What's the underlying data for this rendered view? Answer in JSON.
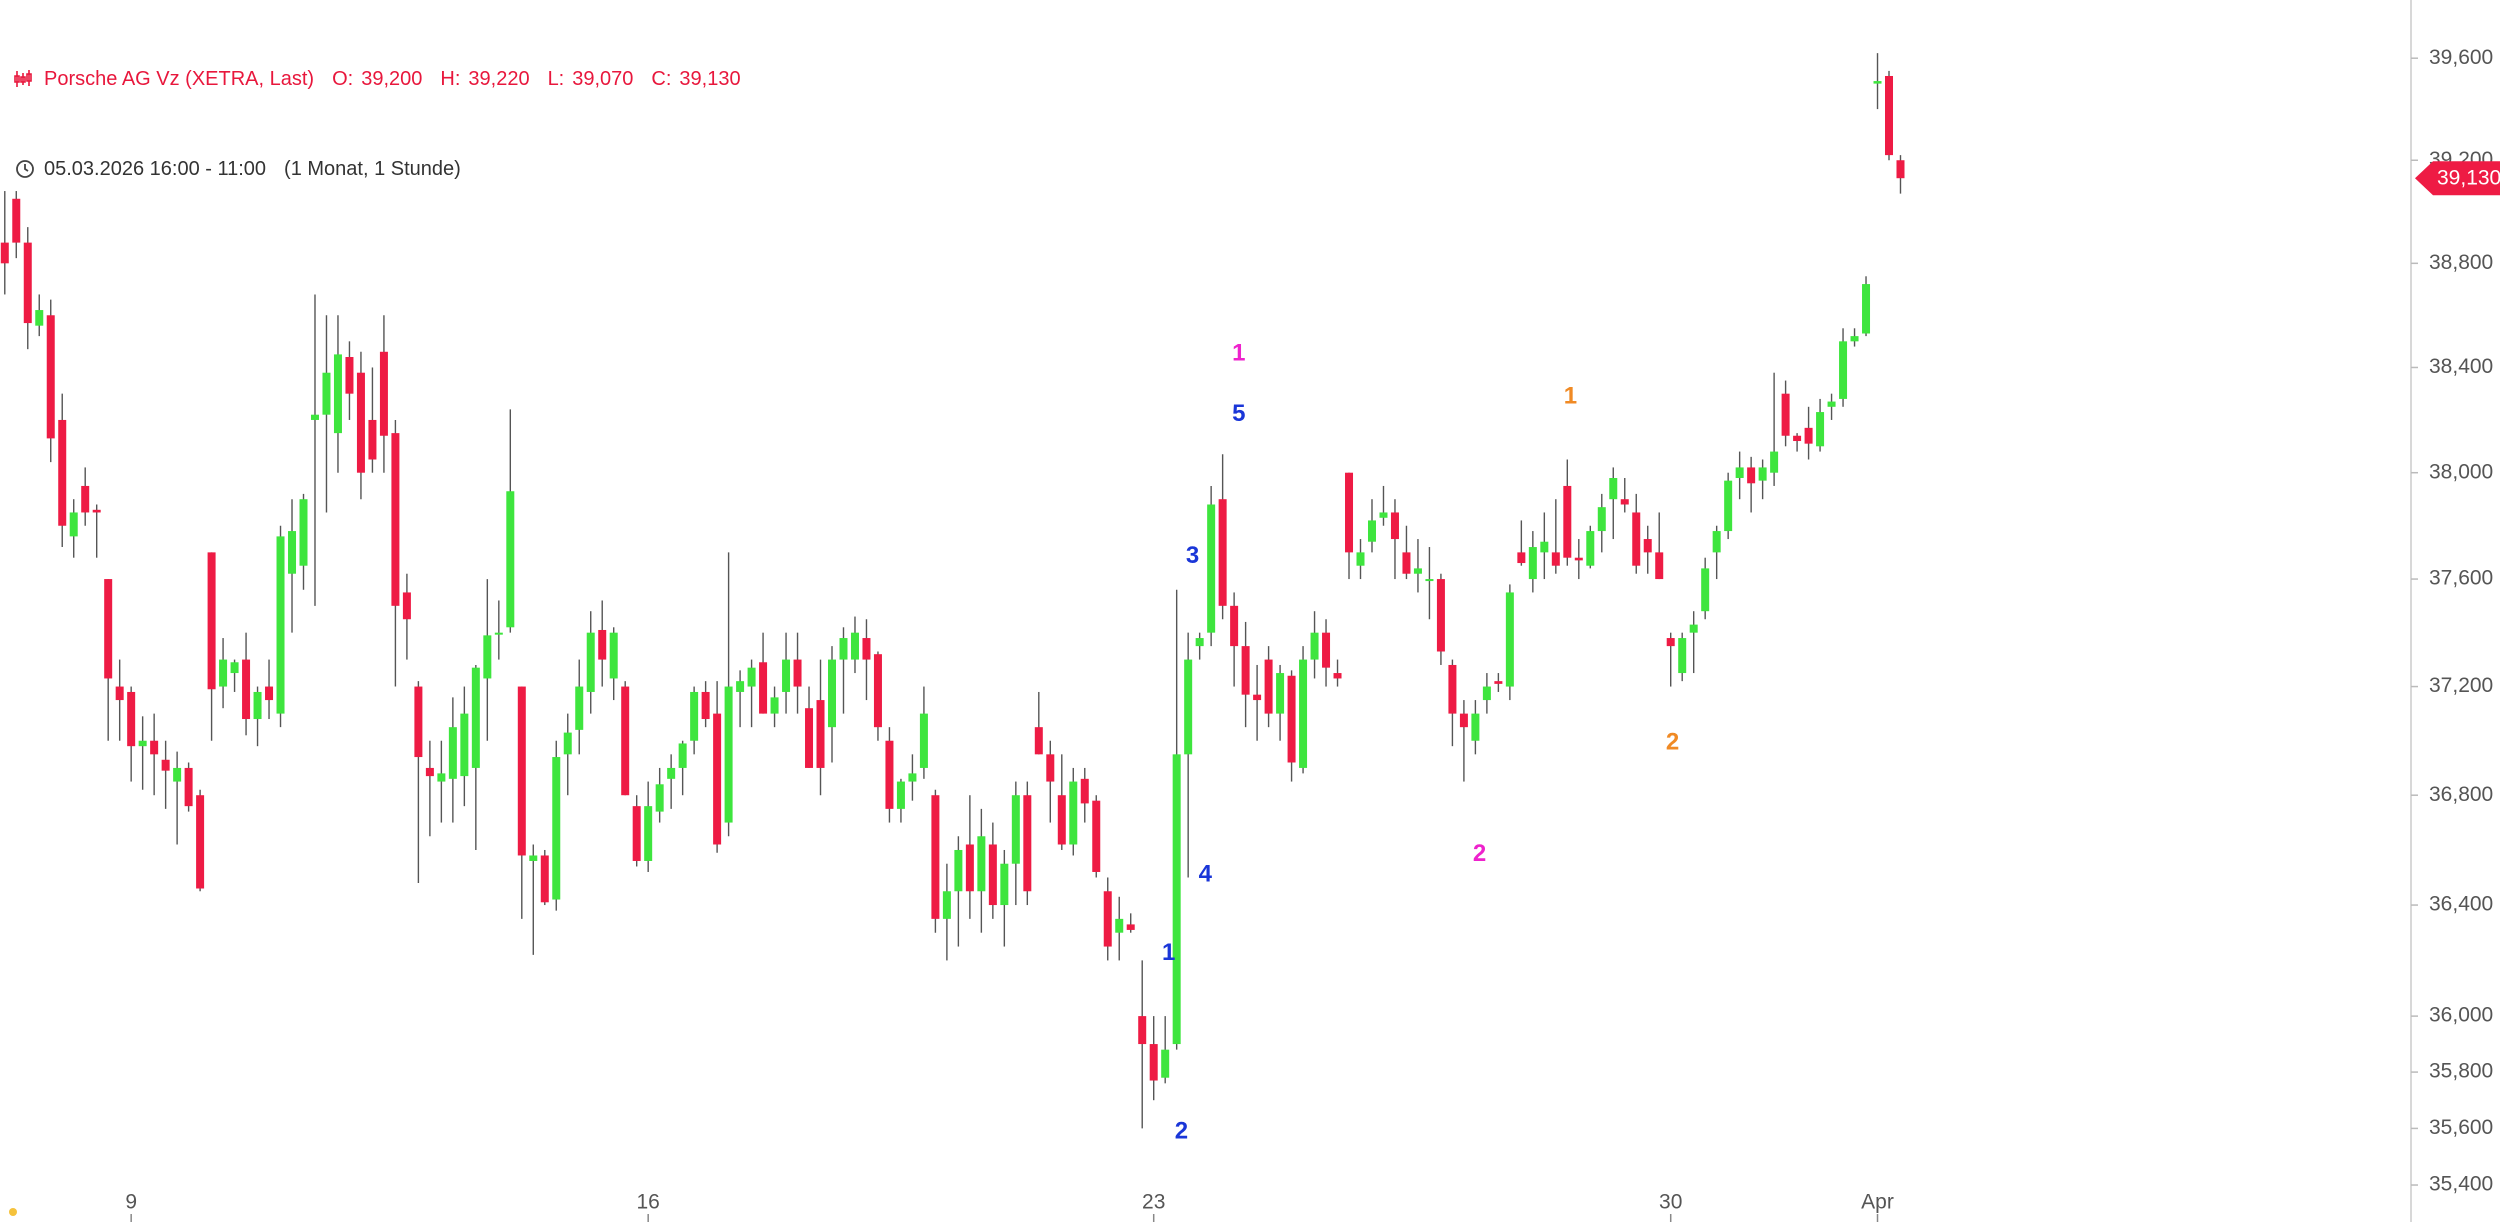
{
  "chart_data": {
    "type": "candlestick",
    "title": "Porsche AG Vz (XETRA, Last)",
    "quote": [
      {
        "label": "O:",
        "value": "39,200"
      },
      {
        "label": "H:",
        "value": "39,220"
      },
      {
        "label": "L:",
        "value": "39,070"
      },
      {
        "label": "C:",
        "value": "39,130"
      }
    ],
    "subtitle": "05.03.2026 16:00 - 11:00",
    "period": "(1 Monat, 1 Stunde)",
    "up_color": "#3ee53e",
    "down_color": "#ee1b44",
    "wick_color": "#555555",
    "log_scale": true,
    "ylim": [
      35270,
      39830
    ],
    "yticks": [
      {
        "value": 35400,
        "label": "35,400"
      },
      {
        "value": 35600,
        "label": "35,600"
      },
      {
        "value": 35800,
        "label": "35,800"
      },
      {
        "value": 36000,
        "label": "36,000"
      },
      {
        "value": 36400,
        "label": "36,400"
      },
      {
        "value": 36800,
        "label": "36,800"
      },
      {
        "value": 37200,
        "label": "37,200"
      },
      {
        "value": 37600,
        "label": "37,600"
      },
      {
        "value": 38000,
        "label": "38,000"
      },
      {
        "value": 38400,
        "label": "38,400"
      },
      {
        "value": 38800,
        "label": "38,800"
      },
      {
        "value": 39200,
        "label": "39,200"
      },
      {
        "value": 39600,
        "label": "39,600"
      }
    ],
    "last_price": {
      "value": 39130,
      "label": "39,130"
    },
    "categories": [
      null,
      null,
      null,
      null,
      null,
      null,
      null,
      null,
      null,
      null,
      null,
      "9",
      null,
      null,
      null,
      null,
      null,
      null,
      null,
      null,
      null,
      null,
      null,
      null,
      null,
      null,
      null,
      null,
      null,
      null,
      null,
      null,
      null,
      null,
      null,
      null,
      null,
      null,
      null,
      null,
      null,
      null,
      null,
      null,
      null,
      null,
      null,
      null,
      null,
      null,
      null,
      null,
      null,
      null,
      null,
      null,
      "16",
      null,
      null,
      null,
      null,
      null,
      null,
      null,
      null,
      null,
      null,
      null,
      null,
      null,
      null,
      null,
      null,
      null,
      null,
      null,
      null,
      null,
      null,
      null,
      null,
      null,
      null,
      null,
      null,
      null,
      null,
      null,
      null,
      null,
      null,
      null,
      null,
      null,
      null,
      null,
      null,
      null,
      null,
      null,
      "23",
      null,
      null,
      null,
      null,
      null,
      null,
      null,
      null,
      null,
      null,
      null,
      null,
      null,
      null,
      null,
      null,
      null,
      null,
      null,
      null,
      null,
      null,
      null,
      null,
      null,
      null,
      null,
      null,
      null,
      null,
      null,
      null,
      null,
      null,
      null,
      null,
      null,
      null,
      null,
      null,
      null,
      null,
      null,
      null,
      "30",
      null,
      null,
      null,
      null,
      null,
      null,
      null,
      null,
      null,
      null,
      null,
      null,
      null,
      null,
      null,
      null,
      null,
      "Apr",
      null,
      null
    ],
    "open": [
      38880,
      39050,
      38880,
      38560,
      38600,
      38200,
      37760,
      37950,
      37860,
      37600,
      37200,
      37180,
      36980,
      37000,
      36930,
      36850,
      36900,
      36800,
      37700,
      37200,
      37250,
      37300,
      37080,
      37200,
      37100,
      37620,
      37650,
      38200,
      38220,
      38150,
      38440,
      38380,
      38200,
      38460,
      38150,
      37550,
      37200,
      36900,
      36850,
      36860,
      36870,
      36900,
      37230,
      37400,
      37420,
      37200,
      36560,
      36580,
      36420,
      36950,
      37040,
      37180,
      37410,
      37230,
      37200,
      36760,
      36560,
      36740,
      36860,
      36900,
      37000,
      37180,
      37100,
      36700,
      37180,
      37200,
      37290,
      37100,
      37180,
      37300,
      37120,
      37150,
      37050,
      37300,
      37300,
      37380,
      37320,
      37000,
      36750,
      36850,
      36900,
      36800,
      36350,
      36450,
      36620,
      36450,
      36620,
      36400,
      36550,
      36800,
      37050,
      36950,
      36800,
      36620,
      36860,
      36780,
      36450,
      36300,
      36330,
      36000,
      35900,
      35780,
      35900,
      36950,
      37350,
      37400,
      37900,
      37500,
      37350,
      37170,
      37300,
      37100,
      37240,
      36900,
      37300,
      37400,
      37250,
      38000,
      37650,
      37740,
      37830,
      37850,
      37700,
      37620,
      37600,
      37600,
      37280,
      37100,
      37000,
      37150,
      37220,
      37200,
      37700,
      37600,
      37700,
      37700,
      37950,
      37680,
      37650,
      37780,
      37900,
      37900,
      37850,
      37750,
      37700,
      37380,
      37250,
      37400,
      37480,
      37700,
      37780,
      37980,
      38020,
      37970,
      38000,
      38300,
      38140,
      38170,
      38100,
      38250,
      38280,
      38500,
      38530,
      39500,
      39530,
      39200
    ],
    "high": [
      39080,
      39080,
      38940,
      38680,
      38660,
      38300,
      37900,
      38020,
      37880,
      37600,
      37300,
      37200,
      37090,
      37100,
      37000,
      36960,
      36920,
      36820,
      37700,
      37380,
      37300,
      37400,
      37200,
      37300,
      37800,
      37900,
      37920,
      38680,
      38600,
      38600,
      38500,
      38460,
      38400,
      38600,
      38200,
      37620,
      37220,
      37000,
      37000,
      37160,
      37200,
      37280,
      37600,
      37520,
      38240,
      37200,
      36620,
      36600,
      37000,
      37100,
      37300,
      37480,
      37520,
      37420,
      37220,
      36800,
      36850,
      36900,
      36950,
      37000,
      37200,
      37220,
      37220,
      37700,
      37260,
      37300,
      37400,
      37200,
      37400,
      37400,
      37200,
      37300,
      37350,
      37420,
      37460,
      37450,
      37330,
      37050,
      36860,
      36950,
      37200,
      36820,
      36550,
      36650,
      36800,
      36750,
      36700,
      36600,
      36850,
      36850,
      37180,
      37000,
      36950,
      36900,
      36900,
      36800,
      36500,
      36430,
      36370,
      36200,
      36000,
      36000,
      37560,
      37400,
      37400,
      37950,
      38070,
      37550,
      37440,
      37280,
      37350,
      37280,
      37260,
      37350,
      37480,
      37450,
      37300,
      38000,
      37750,
      37900,
      37950,
      37900,
      37800,
      37750,
      37720,
      37620,
      37300,
      37150,
      37150,
      37250,
      37250,
      37580,
      37820,
      37780,
      37850,
      37900,
      38050,
      37750,
      37800,
      37920,
      38020,
      37980,
      37920,
      37800,
      37850,
      37400,
      37400,
      37480,
      37680,
      37800,
      38000,
      38080,
      38060,
      38050,
      38380,
      38350,
      38150,
      38250,
      38280,
      38300,
      38550,
      38550,
      38750,
      39620,
      39550,
      39220
    ],
    "low": [
      38680,
      38820,
      38470,
      38520,
      38040,
      37720,
      37680,
      37800,
      37680,
      37000,
      37000,
      36850,
      36820,
      36800,
      36750,
      36620,
      36740,
      36450,
      37000,
      37120,
      37180,
      37020,
      36980,
      37080,
      37050,
      37400,
      37560,
      37500,
      37850,
      38000,
      38200,
      37900,
      38000,
      38000,
      37200,
      37300,
      36480,
      36650,
      36700,
      36700,
      36760,
      36600,
      37000,
      37300,
      37400,
      36350,
      36220,
      36400,
      36380,
      36800,
      36950,
      37100,
      37200,
      37150,
      36800,
      36540,
      36520,
      36700,
      36750,
      36800,
      36950,
      37050,
      36590,
      36650,
      37050,
      37050,
      37100,
      37050,
      37100,
      37100,
      36900,
      36800,
      36920,
      37100,
      37250,
      37150,
      37000,
      36700,
      36700,
      36780,
      36860,
      36300,
      36200,
      36250,
      36350,
      36300,
      36350,
      36250,
      36400,
      36400,
      36950,
      36700,
      36600,
      36580,
      36700,
      36500,
      36200,
      36200,
      36300,
      35600,
      35700,
      35760,
      35880,
      36500,
      37300,
      37350,
      37450,
      37200,
      37050,
      37000,
      37050,
      37000,
      36850,
      36880,
      37230,
      37200,
      37200,
      37600,
      37600,
      37700,
      37800,
      37600,
      37600,
      37550,
      37450,
      37280,
      36980,
      36850,
      36950,
      37100,
      37180,
      37150,
      37650,
      37550,
      37600,
      37620,
      37650,
      37600,
      37640,
      37700,
      37750,
      37850,
      37620,
      37620,
      37600,
      37200,
      37220,
      37250,
      37450,
      37600,
      37750,
      37900,
      37850,
      37900,
      37950,
      38100,
      38080,
      38050,
      38080,
      38200,
      38250,
      38480,
      38520,
      39400,
      39200,
      39070
    ],
    "close": [
      38800,
      38880,
      38570,
      38620,
      38130,
      37800,
      37850,
      37850,
      37850,
      37230,
      37150,
      36980,
      37000,
      36950,
      36890,
      36900,
      36760,
      36460,
      37190,
      37300,
      37290,
      37080,
      37180,
      37150,
      37760,
      37780,
      37900,
      38220,
      38380,
      38450,
      38300,
      38000,
      38050,
      38140,
      37500,
      37450,
      36940,
      36870,
      36880,
      37050,
      37100,
      37270,
      37390,
      37400,
      37930,
      36580,
      36580,
      36410,
      36940,
      37030,
      37200,
      37400,
      37300,
      37400,
      36800,
      36560,
      36760,
      36840,
      36900,
      36990,
      37180,
      37080,
      36620,
      37200,
      37220,
      37270,
      37100,
      37160,
      37300,
      37200,
      36900,
      36900,
      37300,
      37380,
      37400,
      37300,
      37050,
      36750,
      36850,
      36880,
      37100,
      36350,
      36450,
      36600,
      36450,
      36650,
      36400,
      36550,
      36800,
      36450,
      36950,
      36850,
      36620,
      36850,
      36770,
      36520,
      36250,
      36350,
      36310,
      35900,
      35770,
      35880,
      36950,
      37300,
      37380,
      37880,
      37500,
      37350,
      37170,
      37150,
      37100,
      37250,
      36920,
      37300,
      37400,
      37270,
      37230,
      37700,
      37700,
      37820,
      37850,
      37750,
      37620,
      37640,
      37600,
      37330,
      37100,
      37050,
      37100,
      37200,
      37210,
      37550,
      37660,
      37720,
      37740,
      37650,
      37680,
      37670,
      37780,
      37870,
      37980,
      37880,
      37650,
      37700,
      37600,
      37350,
      37380,
      37430,
      37640,
      37780,
      37970,
      38020,
      37960,
      38020,
      38080,
      38140,
      38120,
      38110,
      38230,
      38270,
      38500,
      38520,
      38720,
      39510,
      39220,
      39130
    ],
    "annotations": [
      {
        "text": "1",
        "color": "#1a36d8"
      },
      {
        "text": "2",
        "color": "#1a36d8"
      },
      {
        "text": "3",
        "color": "#1a36d8"
      },
      {
        "text": "4",
        "color": "#1a36d8"
      },
      {
        "text": "5",
        "color": "#1a36d8"
      },
      {
        "text": "1",
        "color": "#ee22cc"
      },
      {
        "text": "2",
        "color": "#ee22cc"
      },
      {
        "text": "1",
        "color": "#f08a24"
      },
      {
        "text": "2",
        "color": "#f08a24"
      }
    ]
  }
}
